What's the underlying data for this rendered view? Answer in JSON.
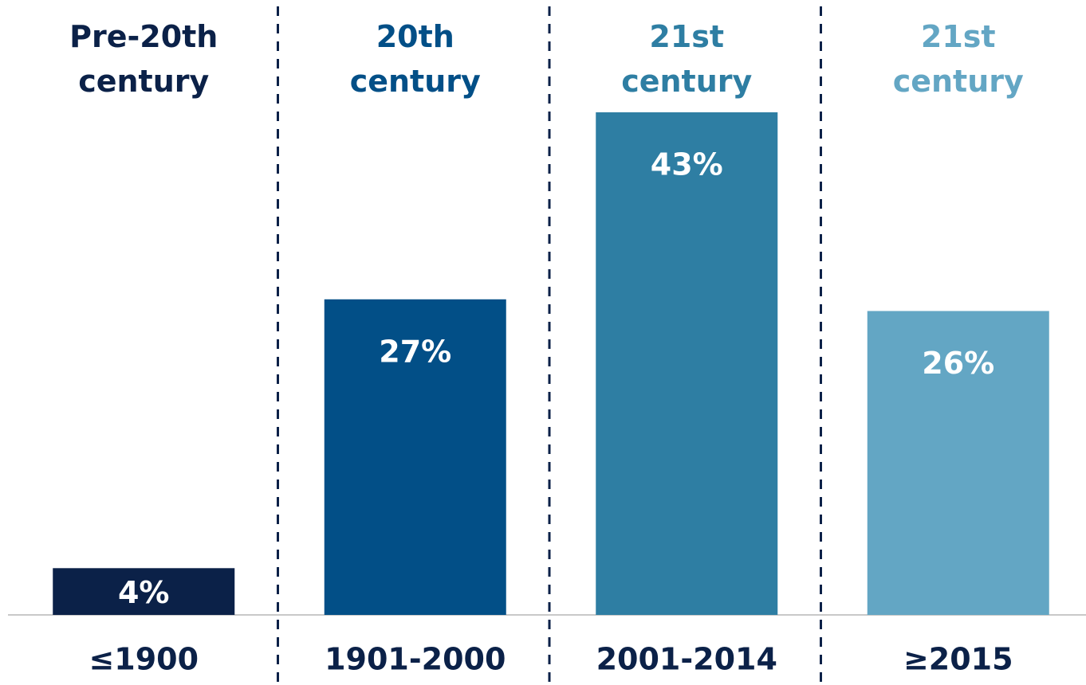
{
  "chart_data": {
    "type": "bar",
    "group_labels": [
      "Pre-20th century",
      "20th century",
      "21st century",
      "21st century"
    ],
    "categories": [
      "≤1900",
      "1901-2000",
      "2001-2014",
      "≥2015"
    ],
    "values": [
      4,
      27,
      43,
      26
    ],
    "value_labels": [
      "4%",
      "27%",
      "43%",
      "26%"
    ],
    "colors": [
      "#0b2148",
      "#024f87",
      "#2e7ea3",
      "#63a6c4"
    ]
  }
}
